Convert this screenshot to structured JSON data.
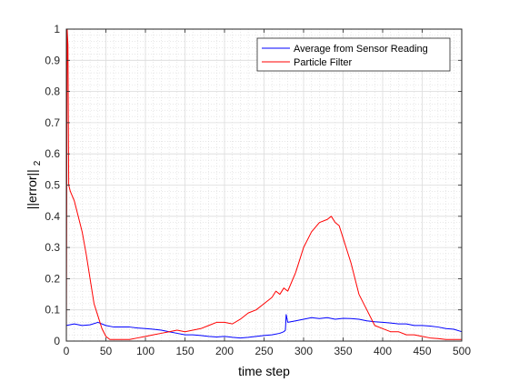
{
  "chart_data": {
    "type": "line",
    "title": "",
    "xlabel": "time step",
    "ylabel_main": "||error||",
    "ylabel_sub": "2",
    "xlim": [
      0,
      500
    ],
    "ylim": [
      0,
      1
    ],
    "xticks": [
      0,
      50,
      100,
      150,
      200,
      250,
      300,
      350,
      400,
      450,
      500
    ],
    "yticks": [
      0,
      0.1,
      0.2,
      0.3,
      0.4,
      0.5,
      0.6,
      0.7,
      0.8,
      0.9,
      1
    ],
    "grid": true,
    "minor_grid": true,
    "legend_position": "top-right",
    "series": [
      {
        "name": "Average from Sensor Reading",
        "color": "#0000ff",
        "x": [
          0,
          10,
          20,
          30,
          40,
          50,
          60,
          70,
          80,
          90,
          100,
          110,
          120,
          130,
          140,
          150,
          160,
          170,
          180,
          190,
          200,
          210,
          220,
          230,
          240,
          250,
          260,
          270,
          275,
          277,
          278,
          280,
          290,
          300,
          310,
          320,
          330,
          340,
          350,
          360,
          370,
          380,
          390,
          400,
          410,
          420,
          430,
          440,
          450,
          460,
          470,
          480,
          490,
          500
        ],
        "y": [
          0.05,
          0.055,
          0.05,
          0.052,
          0.06,
          0.05,
          0.045,
          0.045,
          0.045,
          0.042,
          0.04,
          0.038,
          0.035,
          0.03,
          0.025,
          0.02,
          0.02,
          0.018,
          0.015,
          0.013,
          0.015,
          0.012,
          0.01,
          0.012,
          0.015,
          0.018,
          0.02,
          0.025,
          0.03,
          0.035,
          0.085,
          0.06,
          0.065,
          0.07,
          0.075,
          0.072,
          0.075,
          0.07,
          0.073,
          0.072,
          0.07,
          0.065,
          0.062,
          0.06,
          0.058,
          0.055,
          0.055,
          0.05,
          0.05,
          0.048,
          0.045,
          0.04,
          0.038,
          0.03
        ]
      },
      {
        "name": "Particle Filter",
        "color": "#ff0000",
        "x": [
          0,
          1,
          2,
          3,
          5,
          10,
          15,
          20,
          25,
          30,
          35,
          40,
          45,
          50,
          55,
          60,
          70,
          80,
          90,
          100,
          110,
          120,
          130,
          140,
          150,
          160,
          170,
          180,
          190,
          200,
          210,
          220,
          230,
          240,
          250,
          260,
          265,
          270,
          275,
          280,
          290,
          300,
          310,
          320,
          330,
          335,
          340,
          345,
          350,
          360,
          370,
          380,
          390,
          400,
          410,
          420,
          430,
          440,
          450,
          460,
          470,
          480,
          490,
          500
        ],
        "y": [
          0,
          1.0,
          0.95,
          0.5,
          0.48,
          0.45,
          0.4,
          0.35,
          0.28,
          0.2,
          0.12,
          0.08,
          0.04,
          0.015,
          0.005,
          0.005,
          0.005,
          0.005,
          0.01,
          0.015,
          0.02,
          0.025,
          0.03,
          0.035,
          0.03,
          0.035,
          0.04,
          0.05,
          0.06,
          0.06,
          0.055,
          0.07,
          0.09,
          0.1,
          0.12,
          0.14,
          0.16,
          0.15,
          0.17,
          0.16,
          0.22,
          0.3,
          0.35,
          0.38,
          0.39,
          0.4,
          0.38,
          0.37,
          0.33,
          0.25,
          0.15,
          0.1,
          0.05,
          0.04,
          0.03,
          0.03,
          0.02,
          0.02,
          0.015,
          0.01,
          0.008,
          0.005,
          0.005,
          0.005
        ]
      }
    ]
  }
}
